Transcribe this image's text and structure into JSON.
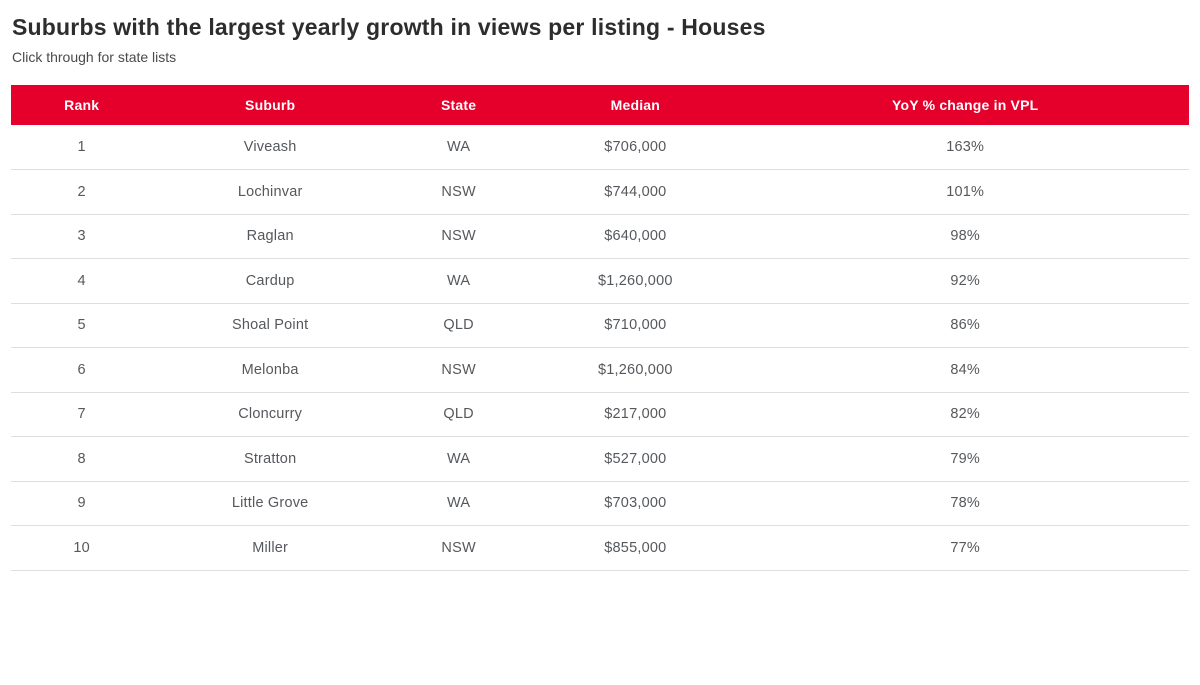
{
  "page": {
    "title": "Suburbs with the largest yearly growth in views per listing - Houses",
    "subtitle": "Click through for state lists"
  },
  "colors": {
    "header_bg": "#e4002b",
    "header_text": "#ffffff",
    "title_text": "#2d2d2d",
    "body_text": "#55585c",
    "row_border": "#dedede"
  },
  "chart_data": {
    "type": "table",
    "title": "Suburbs with the largest yearly growth in views per listing - Houses",
    "columns": [
      "Rank",
      "Suburb",
      "State",
      "Median",
      "YoY % change in VPL"
    ],
    "rows": [
      [
        "1",
        "Viveash",
        "WA",
        "$706,000",
        "163%"
      ],
      [
        "2",
        "Lochinvar",
        "NSW",
        "$744,000",
        "101%"
      ],
      [
        "3",
        "Raglan",
        "NSW",
        "$640,000",
        "98%"
      ],
      [
        "4",
        "Cardup",
        "WA",
        "$1,260,000",
        "92%"
      ],
      [
        "5",
        "Shoal Point",
        "QLD",
        "$710,000",
        "86%"
      ],
      [
        "6",
        "Melonba",
        "NSW",
        "$1,260,000",
        "84%"
      ],
      [
        "7",
        "Cloncurry",
        "QLD",
        "$217,000",
        "82%"
      ],
      [
        "8",
        "Stratton",
        "WA",
        "$527,000",
        "79%"
      ],
      [
        "9",
        "Little Grove",
        "WA",
        "$703,000",
        "78%"
      ],
      [
        "10",
        "Miller",
        "NSW",
        "$855,000",
        "77%"
      ]
    ]
  }
}
